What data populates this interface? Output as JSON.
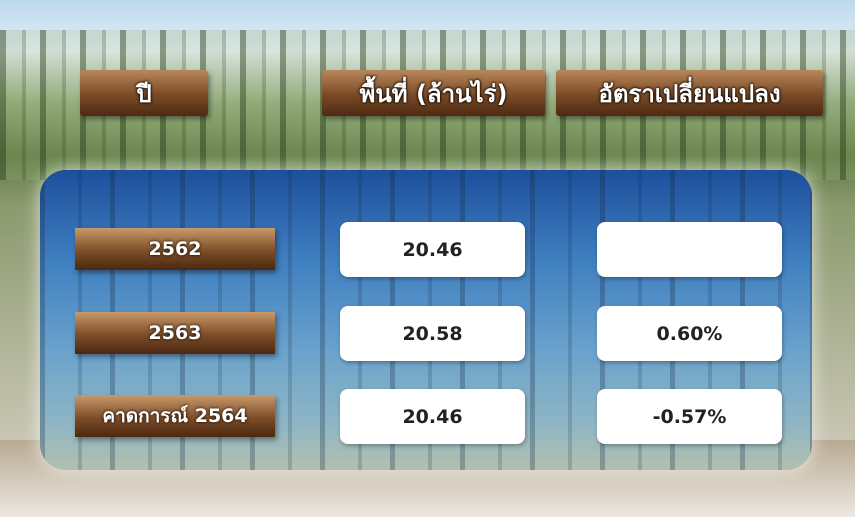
{
  "table": {
    "header": [
      "ปี",
      "พื้นที่ (ล้านไร่)",
      "อัตราเปลี่ยนแปลง"
    ],
    "rows": [
      [
        "2562",
        "20.46",
        null
      ],
      [
        "2563",
        "20.58",
        "0.60%"
      ],
      [
        "คาดการณ์ 2564",
        "20.46",
        "-0.57%"
      ]
    ]
  }
}
